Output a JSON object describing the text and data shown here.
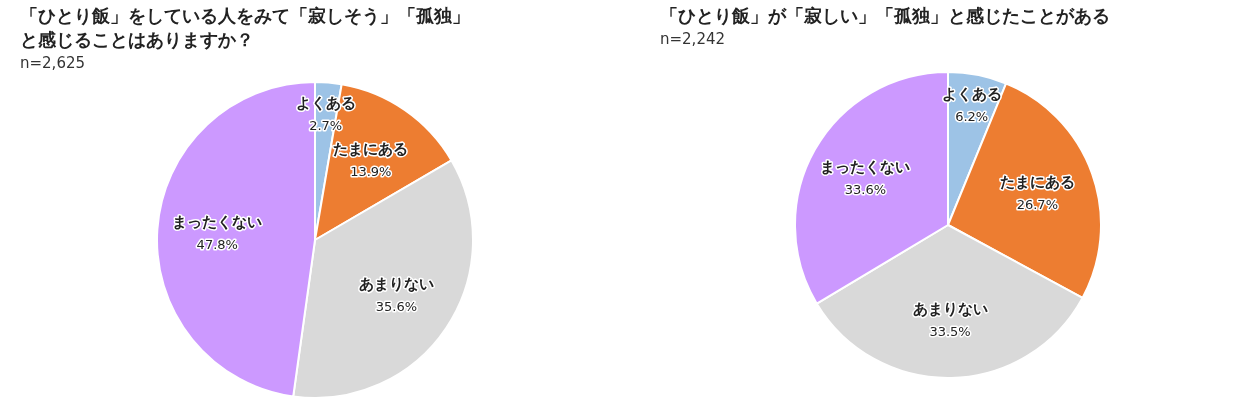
{
  "chart_data": [
    {
      "type": "pie",
      "title": "「ひとり飯」をしている人をみて「寂しそう」「孤独」と感じることはありますか？",
      "subtitle": "n=2,625",
      "categories": [
        "よくある",
        "たまにある",
        "あまりない",
        "まったくない"
      ],
      "values": [
        2.7,
        13.9,
        35.6,
        47.8
      ],
      "value_labels": [
        "2.7%",
        "13.9%",
        "35.6%",
        "47.8%"
      ],
      "colors": [
        "#9dc3e6",
        "#ed7d31",
        "#d9d9d9",
        "#cc99ff"
      ],
      "legend": false
    },
    {
      "type": "pie",
      "title": "「ひとり飯」が「寂しい」「孤独」と感じたことがある",
      "subtitle": "n=2,242",
      "categories": [
        "よくある",
        "たまにある",
        "あまりない",
        "まったくない"
      ],
      "values": [
        6.2,
        26.7,
        33.5,
        33.6
      ],
      "value_labels": [
        "6.2%",
        "26.7%",
        "33.5%",
        "33.6%"
      ],
      "colors": [
        "#9dc3e6",
        "#ed7d31",
        "#d9d9d9",
        "#cc99ff"
      ],
      "legend": false
    }
  ]
}
